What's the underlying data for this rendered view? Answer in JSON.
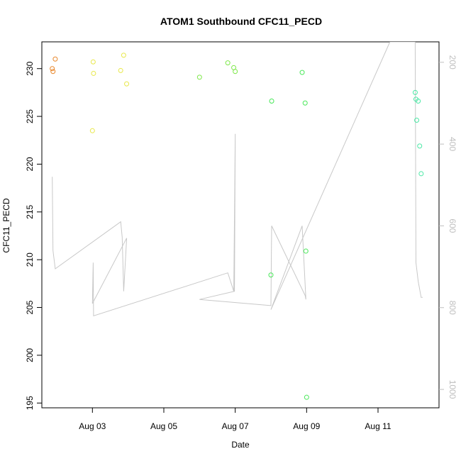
{
  "chart_data": {
    "type": "scatter",
    "title": "ATOM1 Southbound CFC11_PECD",
    "xlabel": "Date",
    "ylabel": "CFC11_PECD",
    "xlim": [
      "2016-08-01T14:00:00",
      "2016-08-12T17:00:00"
    ],
    "ylim": [
      194.5,
      232.8
    ],
    "y2lim": [
      1045,
      150
    ],
    "x_ticks": [
      {
        "date": "2016-08-03T00:00:00",
        "label": "Aug 03"
      },
      {
        "date": "2016-08-05T00:00:00",
        "label": "Aug 05"
      },
      {
        "date": "2016-08-07T00:00:00",
        "label": "Aug 07"
      },
      {
        "date": "2016-08-09T00:00:00",
        "label": "Aug 09"
      },
      {
        "date": "2016-08-11T00:00:00",
        "label": "Aug 11"
      }
    ],
    "y_ticks": [
      {
        "value": 195,
        "label": "195"
      },
      {
        "value": 200,
        "label": "200"
      },
      {
        "value": 205,
        "label": "205"
      },
      {
        "value": 210,
        "label": "210"
      },
      {
        "value": 215,
        "label": "215"
      },
      {
        "value": 220,
        "label": "220"
      },
      {
        "value": 225,
        "label": "225"
      },
      {
        "value": 230,
        "label": "230"
      }
    ],
    "y2_ticks": [
      {
        "value": 200,
        "label": "200"
      },
      {
        "value": 400,
        "label": "400"
      },
      {
        "value": 600,
        "label": "600"
      },
      {
        "value": 800,
        "label": "800"
      },
      {
        "value": 1000,
        "label": "1000"
      }
    ],
    "points": [
      {
        "date": "2016-08-01T21:00:00",
        "y": 230.0,
        "color": "#e8872b"
      },
      {
        "date": "2016-08-01T21:30:00",
        "y": 229.7,
        "color": "#e8872b"
      },
      {
        "date": "2016-08-01T23:00:00",
        "y": 231.0,
        "color": "#e8872b"
      },
      {
        "date": "2016-08-03T00:00:00",
        "y": 223.5,
        "color": "#e8e84a"
      },
      {
        "date": "2016-08-03T00:30:00",
        "y": 230.7,
        "color": "#e8e84a"
      },
      {
        "date": "2016-08-03T00:45:00",
        "y": 229.5,
        "color": "#e8e84a"
      },
      {
        "date": "2016-08-03T19:00:00",
        "y": 229.8,
        "color": "#e8e84a"
      },
      {
        "date": "2016-08-03T21:00:00",
        "y": 231.4,
        "color": "#e8e84a"
      },
      {
        "date": "2016-08-03T23:00:00",
        "y": 228.4,
        "color": "#e8e84a"
      },
      {
        "date": "2016-08-06T00:00:00",
        "y": 229.1,
        "color": "#7ee84a"
      },
      {
        "date": "2016-08-06T19:00:00",
        "y": 230.6,
        "color": "#7ee84a"
      },
      {
        "date": "2016-08-06T23:00:00",
        "y": 230.1,
        "color": "#7ee84a"
      },
      {
        "date": "2016-08-07T00:00:00",
        "y": 229.7,
        "color": "#7ee84a"
      },
      {
        "date": "2016-08-08T00:00:00",
        "y": 208.4,
        "color": "#4ae85a"
      },
      {
        "date": "2016-08-08T00:30:00",
        "y": 226.6,
        "color": "#4ae85a"
      },
      {
        "date": "2016-08-08T21:00:00",
        "y": 229.6,
        "color": "#4ae85a"
      },
      {
        "date": "2016-08-08T23:00:00",
        "y": 226.4,
        "color": "#4ae85a"
      },
      {
        "date": "2016-08-08T23:30:00",
        "y": 210.9,
        "color": "#4ae85a"
      },
      {
        "date": "2016-08-09T00:00:00",
        "y": 195.6,
        "color": "#4ae85a"
      },
      {
        "date": "2016-08-12T01:00:00",
        "y": 227.5,
        "color": "#4ae8a5"
      },
      {
        "date": "2016-08-12T01:30:00",
        "y": 226.8,
        "color": "#4ae8a5"
      },
      {
        "date": "2016-08-12T02:00:00",
        "y": 224.6,
        "color": "#4ae8a5"
      },
      {
        "date": "2016-08-12T03:00:00",
        "y": 226.6,
        "color": "#4ae8a5"
      },
      {
        "date": "2016-08-12T04:00:00",
        "y": 221.9,
        "color": "#4ae8a5"
      },
      {
        "date": "2016-08-12T05:00:00",
        "y": 219.0,
        "color": "#4ae8a5"
      }
    ],
    "line": {
      "color": "#c8c8c8",
      "axis": "right",
      "points": [
        {
          "date": "2016-08-01T21:00:00",
          "y2": 480
        },
        {
          "date": "2016-08-01T21:30:00",
          "y2": 660
        },
        {
          "date": "2016-08-01T23:00:00",
          "y2": 705
        },
        {
          "date": "2016-08-03T19:00:00",
          "y2": 590
        },
        {
          "date": "2016-08-03T20:00:00",
          "y2": 628
        },
        {
          "date": "2016-08-03T21:00:00",
          "y2": 760
        },
        {
          "date": "2016-08-03T23:00:00",
          "y2": 630
        },
        {
          "date": "2016-08-03T00:00:00",
          "y2": 790
        },
        {
          "date": "2016-08-03T00:30:00",
          "y2": 690
        },
        {
          "date": "2016-08-03T00:45:00",
          "y2": 820
        },
        {
          "date": "2016-08-06T19:00:00",
          "y2": 715
        },
        {
          "date": "2016-08-06T23:00:00",
          "y2": 760
        },
        {
          "date": "2016-08-07T00:00:00",
          "y2": 375
        },
        {
          "date": "2016-08-06T23:30:00",
          "y2": 760
        },
        {
          "date": "2016-08-06T00:00:00",
          "y2": 780
        },
        {
          "date": "2016-08-08T00:00:00",
          "y2": 795
        },
        {
          "date": "2016-08-08T00:30:00",
          "y2": 600
        },
        {
          "date": "2016-08-08T23:00:00",
          "y2": 770
        },
        {
          "date": "2016-08-08T23:30:00",
          "y2": 780
        },
        {
          "date": "2016-08-08T21:00:00",
          "y2": 600
        },
        {
          "date": "2016-08-08T00:00:00",
          "y2": 805
        },
        {
          "date": "2016-08-11T08:00:00",
          "y2": 150
        },
        {
          "date": "2016-08-12T01:00:00",
          "y2": 150
        },
        {
          "date": "2016-08-12T01:30:00",
          "y2": 690
        },
        {
          "date": "2016-08-12T03:00:00",
          "y2": 735
        },
        {
          "date": "2016-08-12T05:00:00",
          "y2": 775
        },
        {
          "date": "2016-08-12T06:00:00",
          "y2": 775
        }
      ]
    },
    "grid": false,
    "legend": "none"
  }
}
